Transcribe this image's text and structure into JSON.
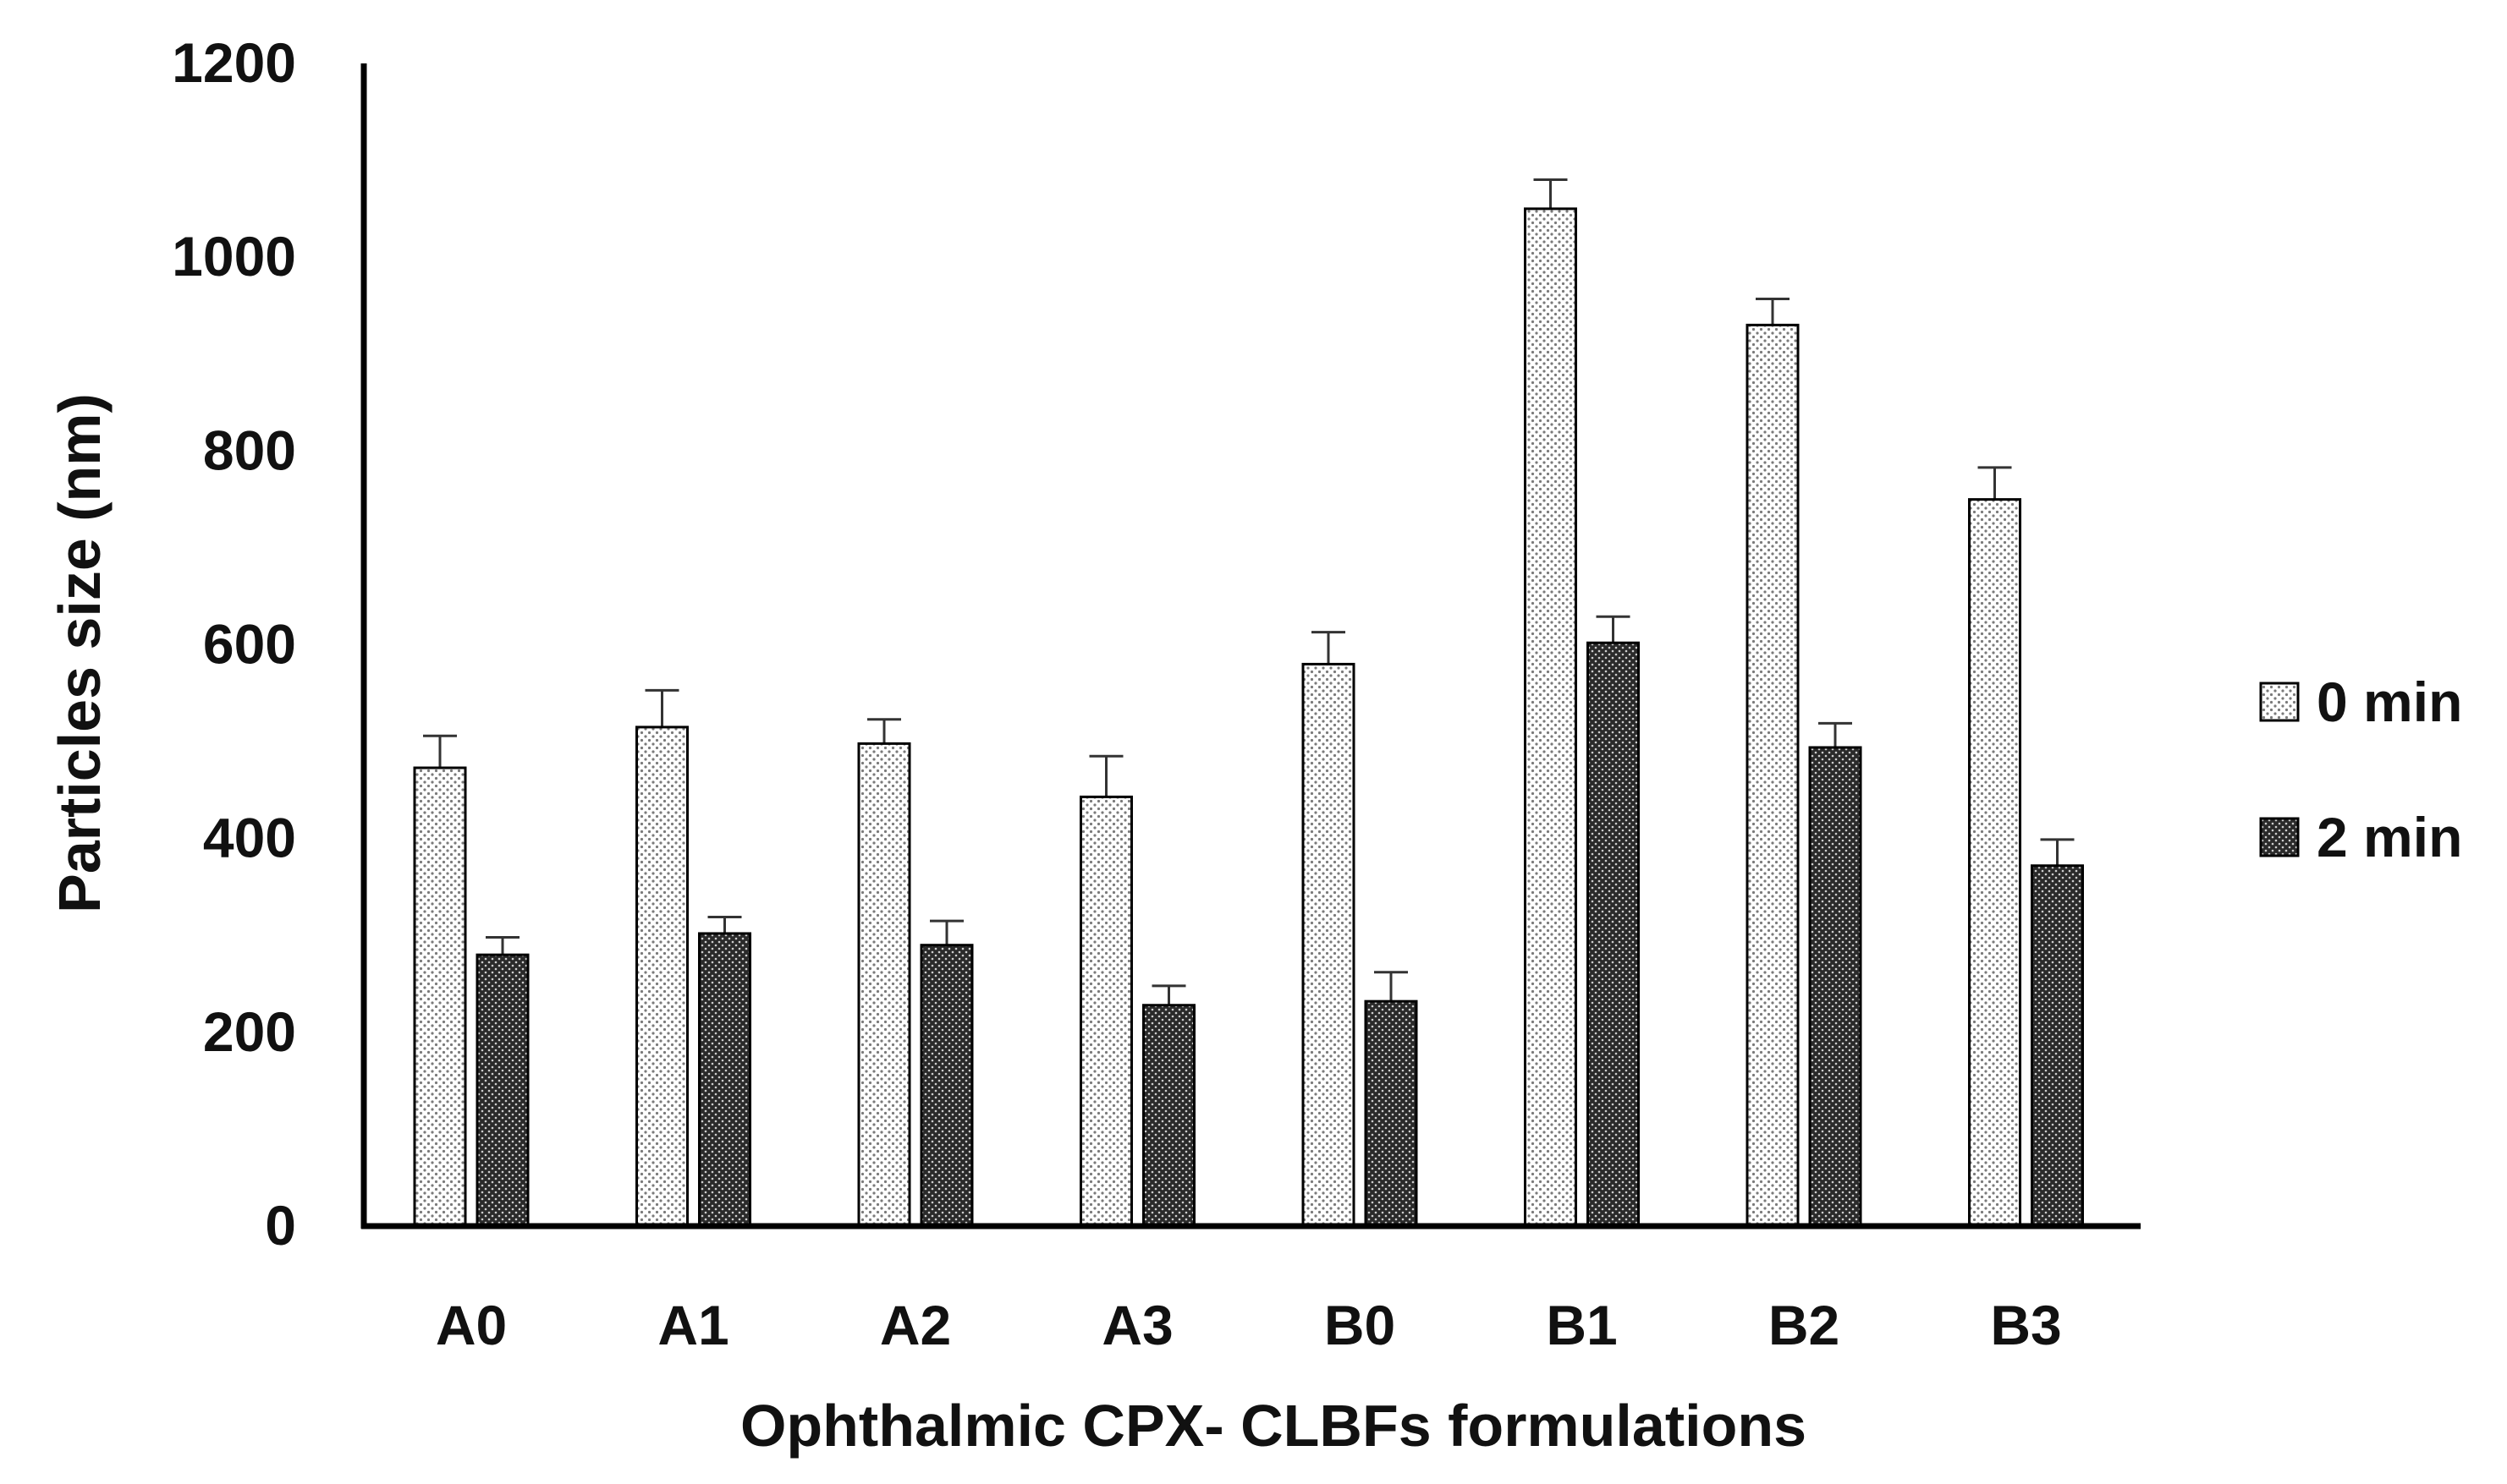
{
  "chart_data": {
    "type": "bar",
    "title": "",
    "xlabel": "Ophthalmic CPX- CLBFs formulations",
    "ylabel": "Particles size (nm)",
    "ylim": [
      0,
      1200
    ],
    "yticks": [
      0,
      200,
      400,
      600,
      800,
      1000,
      1200
    ],
    "categories": [
      "A0",
      "A1",
      "A2",
      "A3",
      "B0",
      "B1",
      "B2",
      "B3"
    ],
    "series": [
      {
        "name": "0 min",
        "pattern": "light-dotted",
        "values": [
          473,
          515,
          498,
          443,
          580,
          1050,
          930,
          750
        ],
        "errors": [
          33,
          38,
          25,
          42,
          33,
          30,
          27,
          33
        ]
      },
      {
        "name": "2 min",
        "pattern": "dark-dotted",
        "values": [
          280,
          302,
          290,
          228,
          232,
          602,
          494,
          372
        ],
        "errors": [
          18,
          17,
          25,
          20,
          30,
          27,
          25,
          27
        ]
      }
    ],
    "legend_position": "right",
    "grid": false,
    "colors": {
      "axis": "#000000",
      "light_fill": "#ffffff",
      "light_dot": "#7a7a7a",
      "dark_fill": "#2a2a2a",
      "dark_dot": "#cfcfcf"
    }
  }
}
